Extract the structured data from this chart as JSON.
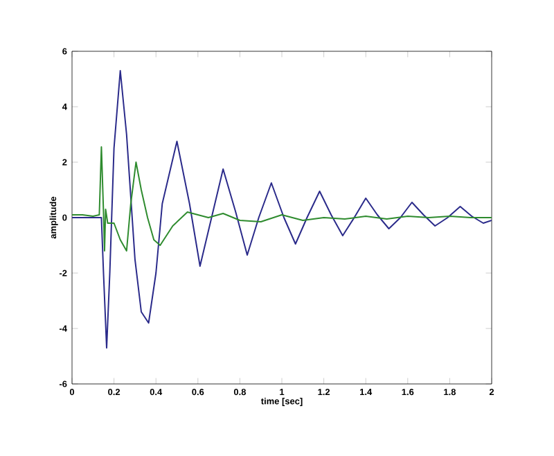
{
  "chart_data": {
    "type": "line",
    "xlabel": "time [sec]",
    "ylabel": "amplitude",
    "xlim": [
      0,
      2
    ],
    "ylim": [
      -6,
      6
    ],
    "xticks": [
      0,
      0.2,
      0.4,
      0.6,
      0.8,
      1,
      1.2,
      1.4,
      1.6,
      1.8,
      2
    ],
    "yticks": [
      -6,
      -4,
      -2,
      0,
      2,
      4,
      6
    ],
    "grid": false,
    "series": [
      {
        "color": "#2a2a8a",
        "x": [
          0,
          0.05,
          0.1,
          0.14,
          0.15,
          0.165,
          0.18,
          0.2,
          0.23,
          0.26,
          0.3,
          0.33,
          0.365,
          0.4,
          0.43,
          0.5,
          0.56,
          0.61,
          0.665,
          0.72,
          0.78,
          0.835,
          0.89,
          0.95,
          1.01,
          1.065,
          1.12,
          1.18,
          1.235,
          1.29,
          1.345,
          1.4,
          1.455,
          1.51,
          1.565,
          1.62,
          1.675,
          1.73,
          1.79,
          1.85,
          1.905,
          1.96,
          2.0
        ],
        "values": [
          0,
          0,
          0,
          0,
          -2.0,
          -4.7,
          -2.0,
          2.5,
          5.3,
          3.0,
          -1.5,
          -3.4,
          -3.8,
          -2.0,
          0.5,
          2.75,
          0.5,
          -1.75,
          0,
          1.75,
          0.2,
          -1.35,
          0,
          1.25,
          0,
          -0.95,
          0,
          0.95,
          0.1,
          -0.65,
          0,
          0.7,
          0.1,
          -0.4,
          0,
          0.55,
          0.1,
          -0.3,
          0,
          0.4,
          0.05,
          -0.2,
          -0.1
        ]
      },
      {
        "color": "#2e8b2e",
        "x": [
          0,
          0.05,
          0.1,
          0.13,
          0.14,
          0.15,
          0.155,
          0.16,
          0.17,
          0.2,
          0.23,
          0.26,
          0.28,
          0.305,
          0.33,
          0.36,
          0.39,
          0.42,
          0.48,
          0.55,
          0.65,
          0.72,
          0.8,
          0.9,
          1.0,
          1.1,
          1.2,
          1.3,
          1.4,
          1.5,
          1.6,
          1.7,
          1.8,
          1.9,
          2.0
        ],
        "values": [
          0.1,
          0.1,
          0.05,
          0.1,
          2.55,
          0.2,
          -1.2,
          0.3,
          -0.2,
          -0.2,
          -0.8,
          -1.2,
          0.5,
          2.0,
          1.0,
          0,
          -0.8,
          -1.0,
          -0.3,
          0.2,
          0,
          0.15,
          -0.1,
          -0.15,
          0.1,
          -0.1,
          0,
          -0.05,
          0.05,
          -0.05,
          0.05,
          0,
          0.05,
          0,
          0
        ]
      }
    ]
  }
}
